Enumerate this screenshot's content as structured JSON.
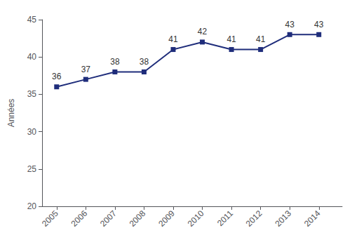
{
  "chart_data": {
    "type": "line",
    "x": [
      2005,
      2006,
      2007,
      2008,
      2009,
      2010,
      2011,
      2012,
      2013,
      2014
    ],
    "values": [
      36,
      37,
      38,
      38,
      41,
      42,
      41,
      41,
      43,
      43
    ],
    "color": "#1F2D7B",
    "marker": "square",
    "data_labels": true,
    "ylabel": "Années",
    "xlim": [
      2004.5,
      2014.8
    ],
    "xticks": [
      2005,
      2006,
      2007,
      2008,
      2009,
      2010,
      2011,
      2012,
      2013,
      2014
    ],
    "ylim": [
      20,
      45
    ],
    "yticks": [
      20,
      25,
      30,
      35,
      40,
      45
    ],
    "grid": false
  }
}
